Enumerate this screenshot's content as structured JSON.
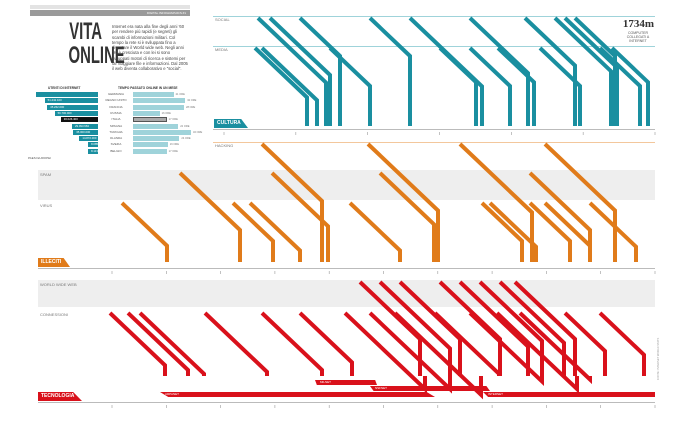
{
  "header": {
    "strip": "DIGITAL INFOGRAPHICS #1",
    "title_line1": "VITA",
    "title_line2": "ONLINE",
    "intro": "Internet era nata alla fine degli anni '60 per rendere più rapidi (e segreti) gli scambi di informazioni militari. Col tempo la rete si è sviluppata fino a diventare il World wide web. Negli anni '90 è cresciuta e con lei si sono sviluppati motori di ricerca e sistemi per far viaggiare file e informazioni. Dal 2005 il web diventa collaborativo e \"social\"."
  },
  "stats": {
    "users_header": "UTENTI DI INTERNET",
    "time_header": "TEMPO PASSATO ONLINE IN UN MESE",
    "footer": "PAESI EUROPEI",
    "rows": [
      {
        "country": "GERMANIA",
        "users": "",
        "users_pct": 100,
        "time": "21 ORE",
        "time_pct": 70
      },
      {
        "country": "REGNO UNITO",
        "users": "51.442.100",
        "users_pct": 86,
        "time": "32 ORE",
        "time_pct": 90
      },
      {
        "country": "FRANCIA",
        "users": "45.262.000",
        "users_pct": 82,
        "time": "28 ORE",
        "time_pct": 88
      },
      {
        "country": "RUSSIA",
        "users": "59.700.000",
        "users_pct": 70,
        "time": "16 ORE",
        "time_pct": 46
      },
      {
        "country": "ITALIA",
        "users": "30.026.400",
        "users_pct": 60,
        "time": "17 ORE",
        "time_pct": 58,
        "highlight": true
      },
      {
        "country": "SPAGNA",
        "users": "29.093.984",
        "users_pct": 42,
        "time": "22 ORE",
        "time_pct": 78
      },
      {
        "country": "TURCHIA",
        "users": "35.000.000",
        "users_pct": 40,
        "time": "32 ORE",
        "time_pct": 100
      },
      {
        "country": "OLANDA",
        "users": "14.872.000",
        "users_pct": 30,
        "time": "24 ORE",
        "time_pct": 80
      },
      {
        "country": "SVEZIA",
        "users": "8.085.500",
        "users_pct": 16,
        "time": "16 ORE",
        "time_pct": 60
      },
      {
        "country": "BELGIO",
        "users": "8.113.200",
        "users_pct": 16,
        "time": "17 ORE",
        "time_pct": 58
      }
    ]
  },
  "cultura": {
    "label": "CULTURA",
    "lanes": [
      "SOCIAL",
      "MEDIA"
    ],
    "counter": "1734m",
    "counter_sub": "COMPUTER COLLEGATI A INTERNET",
    "color": "#1a8fa0"
  },
  "illeciti": {
    "label": "ILLECITI",
    "lanes": [
      "HACKING",
      "SPAM",
      "VIRUS"
    ],
    "color": "#e07b1a"
  },
  "tecnologia": {
    "label": "TECNOLOGIA",
    "lanes": [
      "WORLD WIDE WEB",
      "CONNESSIONI"
    ],
    "color": "#d9111b",
    "networks": [
      "MILNET",
      "NSFNET",
      "ARPANET",
      "INTERNET"
    ]
  },
  "credits": "FONTE: INTERNET WORLD STATS"
}
